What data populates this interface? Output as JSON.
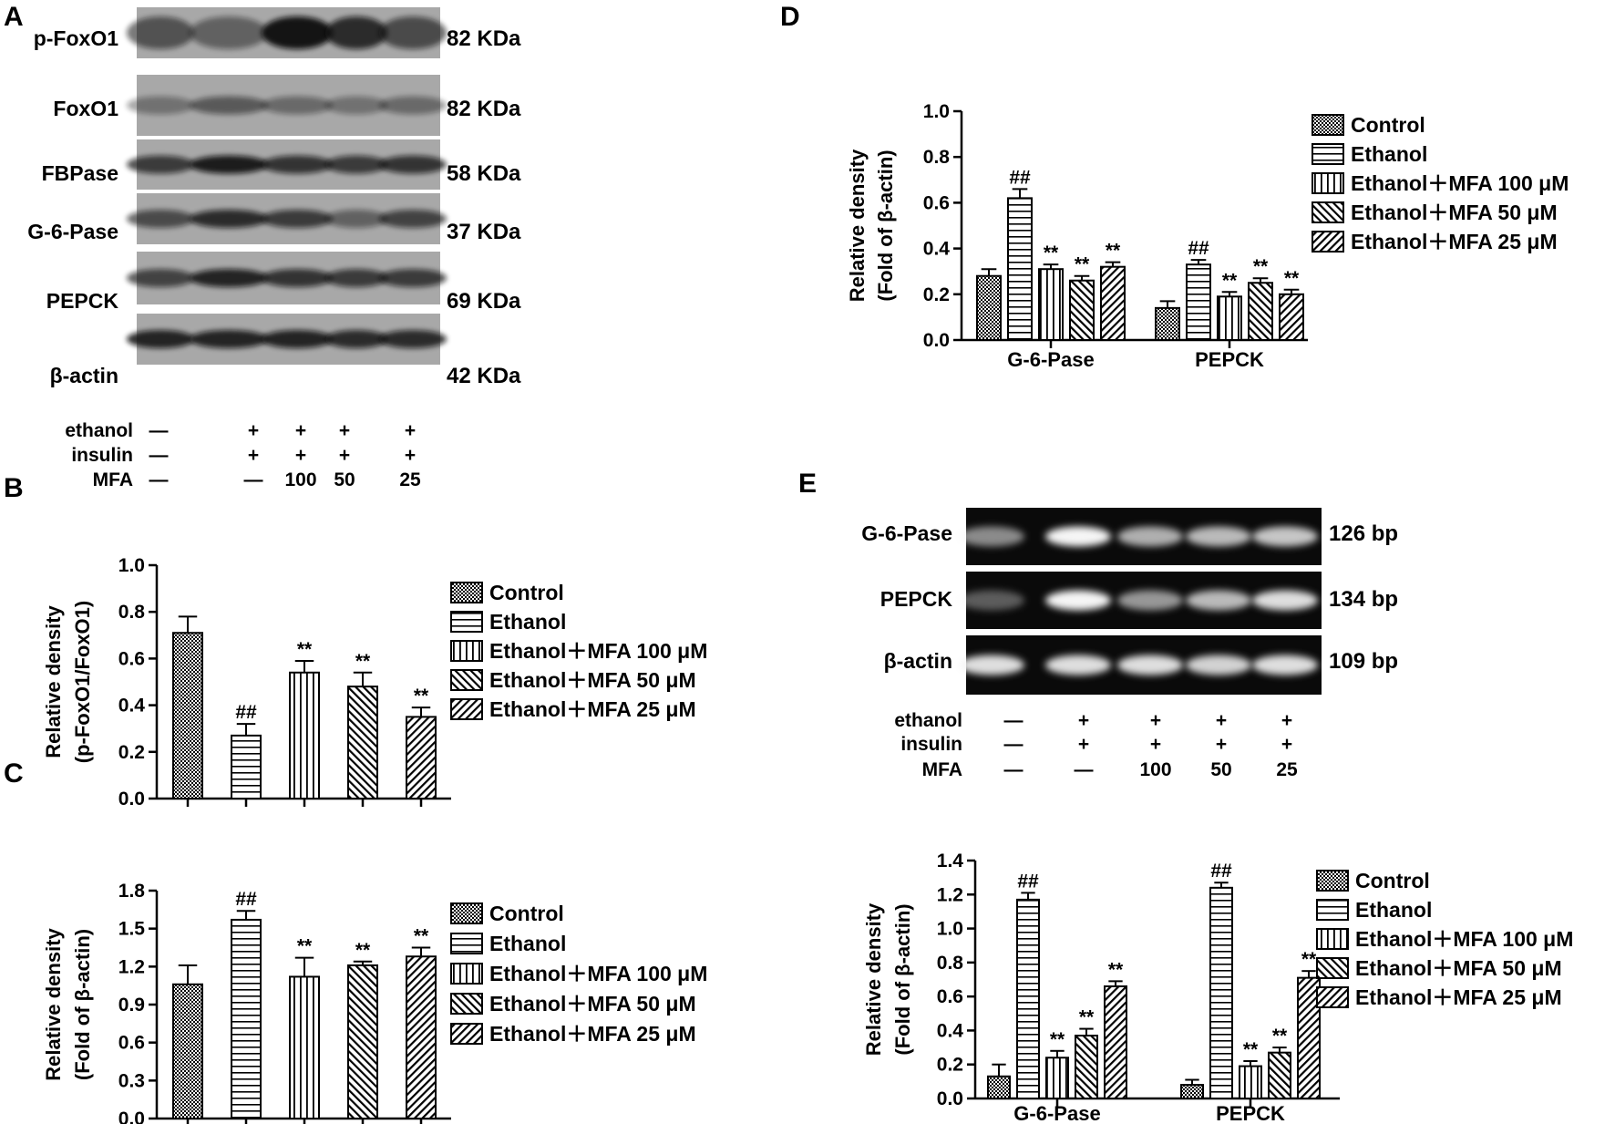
{
  "figure": {
    "panels": {
      "A": "A",
      "B": "B",
      "C": "C",
      "D": "D",
      "E": "E"
    },
    "condition_rows": [
      {
        "label": "ethanol",
        "values": [
          "—",
          "+",
          "+",
          "+",
          "+"
        ]
      },
      {
        "label": "insulin",
        "values": [
          "—",
          "+",
          "+",
          "+",
          "+"
        ]
      },
      {
        "label": "MFA",
        "values": [
          "—",
          "—",
          "100",
          "50",
          "25"
        ]
      }
    ],
    "legend": [
      "Control",
      "Ethanol",
      "Ethanol＋MFA 100 μM",
      "Ethanol＋MFA 50 μM",
      "Ethanol＋MFA 25 μM"
    ],
    "colors": {
      "ink": "#000000",
      "blot_bg": "#9c9c9c",
      "gel_bg": "#0a0a0a",
      "gel_band": "#f5f5f5"
    }
  },
  "western_blot": {
    "blots": [
      {
        "name": "p-FoxO1",
        "size": "82 KDa"
      },
      {
        "name": "FoxO1",
        "size": "82 KDa"
      },
      {
        "name": "FBPase",
        "size": "58 KDa"
      },
      {
        "name": "G-6-Pase",
        "size": "37 KDa"
      },
      {
        "name": "PEPCK",
        "size": "69 KDa"
      },
      {
        "name": "β-actin",
        "size": "42 KDa"
      }
    ]
  },
  "pcr_gel": {
    "bands": [
      {
        "name": "G-6-Pase",
        "size": "126 bp"
      },
      {
        "name": "PEPCK",
        "size": "134 bp"
      },
      {
        "name": "β-actin",
        "size": "109 bp"
      }
    ]
  },
  "chart_data": [
    {
      "panel": "B",
      "type": "bar",
      "ylabel": "Relative density",
      "ylabel2": "(p-FoxO1/FoxO1)",
      "ylim": [
        0,
        1.0
      ],
      "yticks": [
        "0.0",
        "0.2",
        "0.4",
        "0.6",
        "0.8",
        "1.0"
      ],
      "categories": [
        ""
      ],
      "series": [
        {
          "name": "Control",
          "values": [
            0.71
          ],
          "errors": [
            0.07
          ],
          "sig": [
            ""
          ]
        },
        {
          "name": "Ethanol",
          "values": [
            0.27
          ],
          "errors": [
            0.05
          ],
          "sig": [
            "##"
          ]
        },
        {
          "name": "Ethanol＋MFA 100 μM",
          "values": [
            0.54
          ],
          "errors": [
            0.05
          ],
          "sig": [
            "**"
          ]
        },
        {
          "name": "Ethanol＋MFA 50 μM",
          "values": [
            0.48
          ],
          "errors": [
            0.06
          ],
          "sig": [
            "**"
          ]
        },
        {
          "name": "Ethanol＋MFA 25 μM",
          "values": [
            0.35
          ],
          "errors": [
            0.04
          ],
          "sig": [
            "**"
          ]
        }
      ]
    },
    {
      "panel": "C",
      "type": "bar",
      "ylabel": "Relative density",
      "ylabel2": "(Fold of β-actin)",
      "ylim": [
        0,
        1.8
      ],
      "yticks": [
        "0.0",
        "0.3",
        "0.6",
        "0.9",
        "1.2",
        "1.5",
        "1.8"
      ],
      "categories": [
        ""
      ],
      "series": [
        {
          "name": "Control",
          "values": [
            1.06
          ],
          "errors": [
            0.15
          ],
          "sig": [
            ""
          ]
        },
        {
          "name": "Ethanol",
          "values": [
            1.57
          ],
          "errors": [
            0.07
          ],
          "sig": [
            "##"
          ]
        },
        {
          "name": "Ethanol＋MFA 100 μM",
          "values": [
            1.12
          ],
          "errors": [
            0.15
          ],
          "sig": [
            "**"
          ]
        },
        {
          "name": "Ethanol＋MFA 50 μM",
          "values": [
            1.21
          ],
          "errors": [
            0.03
          ],
          "sig": [
            "**"
          ]
        },
        {
          "name": "Ethanol＋MFA 25 μM",
          "values": [
            1.28
          ],
          "errors": [
            0.07
          ],
          "sig": [
            "**"
          ]
        }
      ]
    },
    {
      "panel": "D",
      "type": "bar",
      "ylabel": "Relative density",
      "ylabel2": "(Fold of β-actin)",
      "ylim": [
        0,
        1.0
      ],
      "yticks": [
        "0.0",
        "0.2",
        "0.4",
        "0.6",
        "0.8",
        "1.0"
      ],
      "categories": [
        "G-6-Pase",
        "PEPCK"
      ],
      "series": [
        {
          "name": "Control",
          "values": [
            0.28,
            0.14
          ],
          "errors": [
            0.03,
            0.03
          ],
          "sig": [
            "",
            ""
          ]
        },
        {
          "name": "Ethanol",
          "values": [
            0.62,
            0.33
          ],
          "errors": [
            0.04,
            0.02
          ],
          "sig": [
            "##",
            "##"
          ]
        },
        {
          "name": "Ethanol＋MFA 100 μM",
          "values": [
            0.31,
            0.19
          ],
          "errors": [
            0.02,
            0.02
          ],
          "sig": [
            "**",
            "**"
          ]
        },
        {
          "name": "Ethanol＋MFA 50 μM",
          "values": [
            0.26,
            0.25
          ],
          "errors": [
            0.02,
            0.02
          ],
          "sig": [
            "**",
            "**"
          ]
        },
        {
          "name": "Ethanol＋MFA 25 μM",
          "values": [
            0.32,
            0.2
          ],
          "errors": [
            0.02,
            0.02
          ],
          "sig": [
            "**",
            "**"
          ]
        }
      ]
    },
    {
      "panel": "E",
      "type": "bar",
      "ylabel": "Relative density",
      "ylabel2": "(Fold of β-actin)",
      "ylim": [
        0,
        1.4
      ],
      "yticks": [
        "0.0",
        "0.2",
        "0.4",
        "0.6",
        "0.8",
        "1.0",
        "1.2",
        "1.4"
      ],
      "categories": [
        "G-6-Pase",
        "PEPCK"
      ],
      "series": [
        {
          "name": "Control",
          "values": [
            0.13,
            0.08
          ],
          "errors": [
            0.07,
            0.03
          ],
          "sig": [
            "",
            ""
          ]
        },
        {
          "name": "Ethanol",
          "values": [
            1.17,
            1.24
          ],
          "errors": [
            0.04,
            0.03
          ],
          "sig": [
            "##",
            "##"
          ]
        },
        {
          "name": "Ethanol＋MFA 100 μM",
          "values": [
            0.24,
            0.19
          ],
          "errors": [
            0.04,
            0.03
          ],
          "sig": [
            "**",
            "**"
          ]
        },
        {
          "name": "Ethanol＋MFA 50 μM",
          "values": [
            0.37,
            0.27
          ],
          "errors": [
            0.04,
            0.03
          ],
          "sig": [
            "**",
            "**"
          ]
        },
        {
          "name": "Ethanol＋MFA 25 μM",
          "values": [
            0.66,
            0.71
          ],
          "errors": [
            0.03,
            0.04
          ],
          "sig": [
            "**",
            "**"
          ]
        }
      ]
    }
  ]
}
